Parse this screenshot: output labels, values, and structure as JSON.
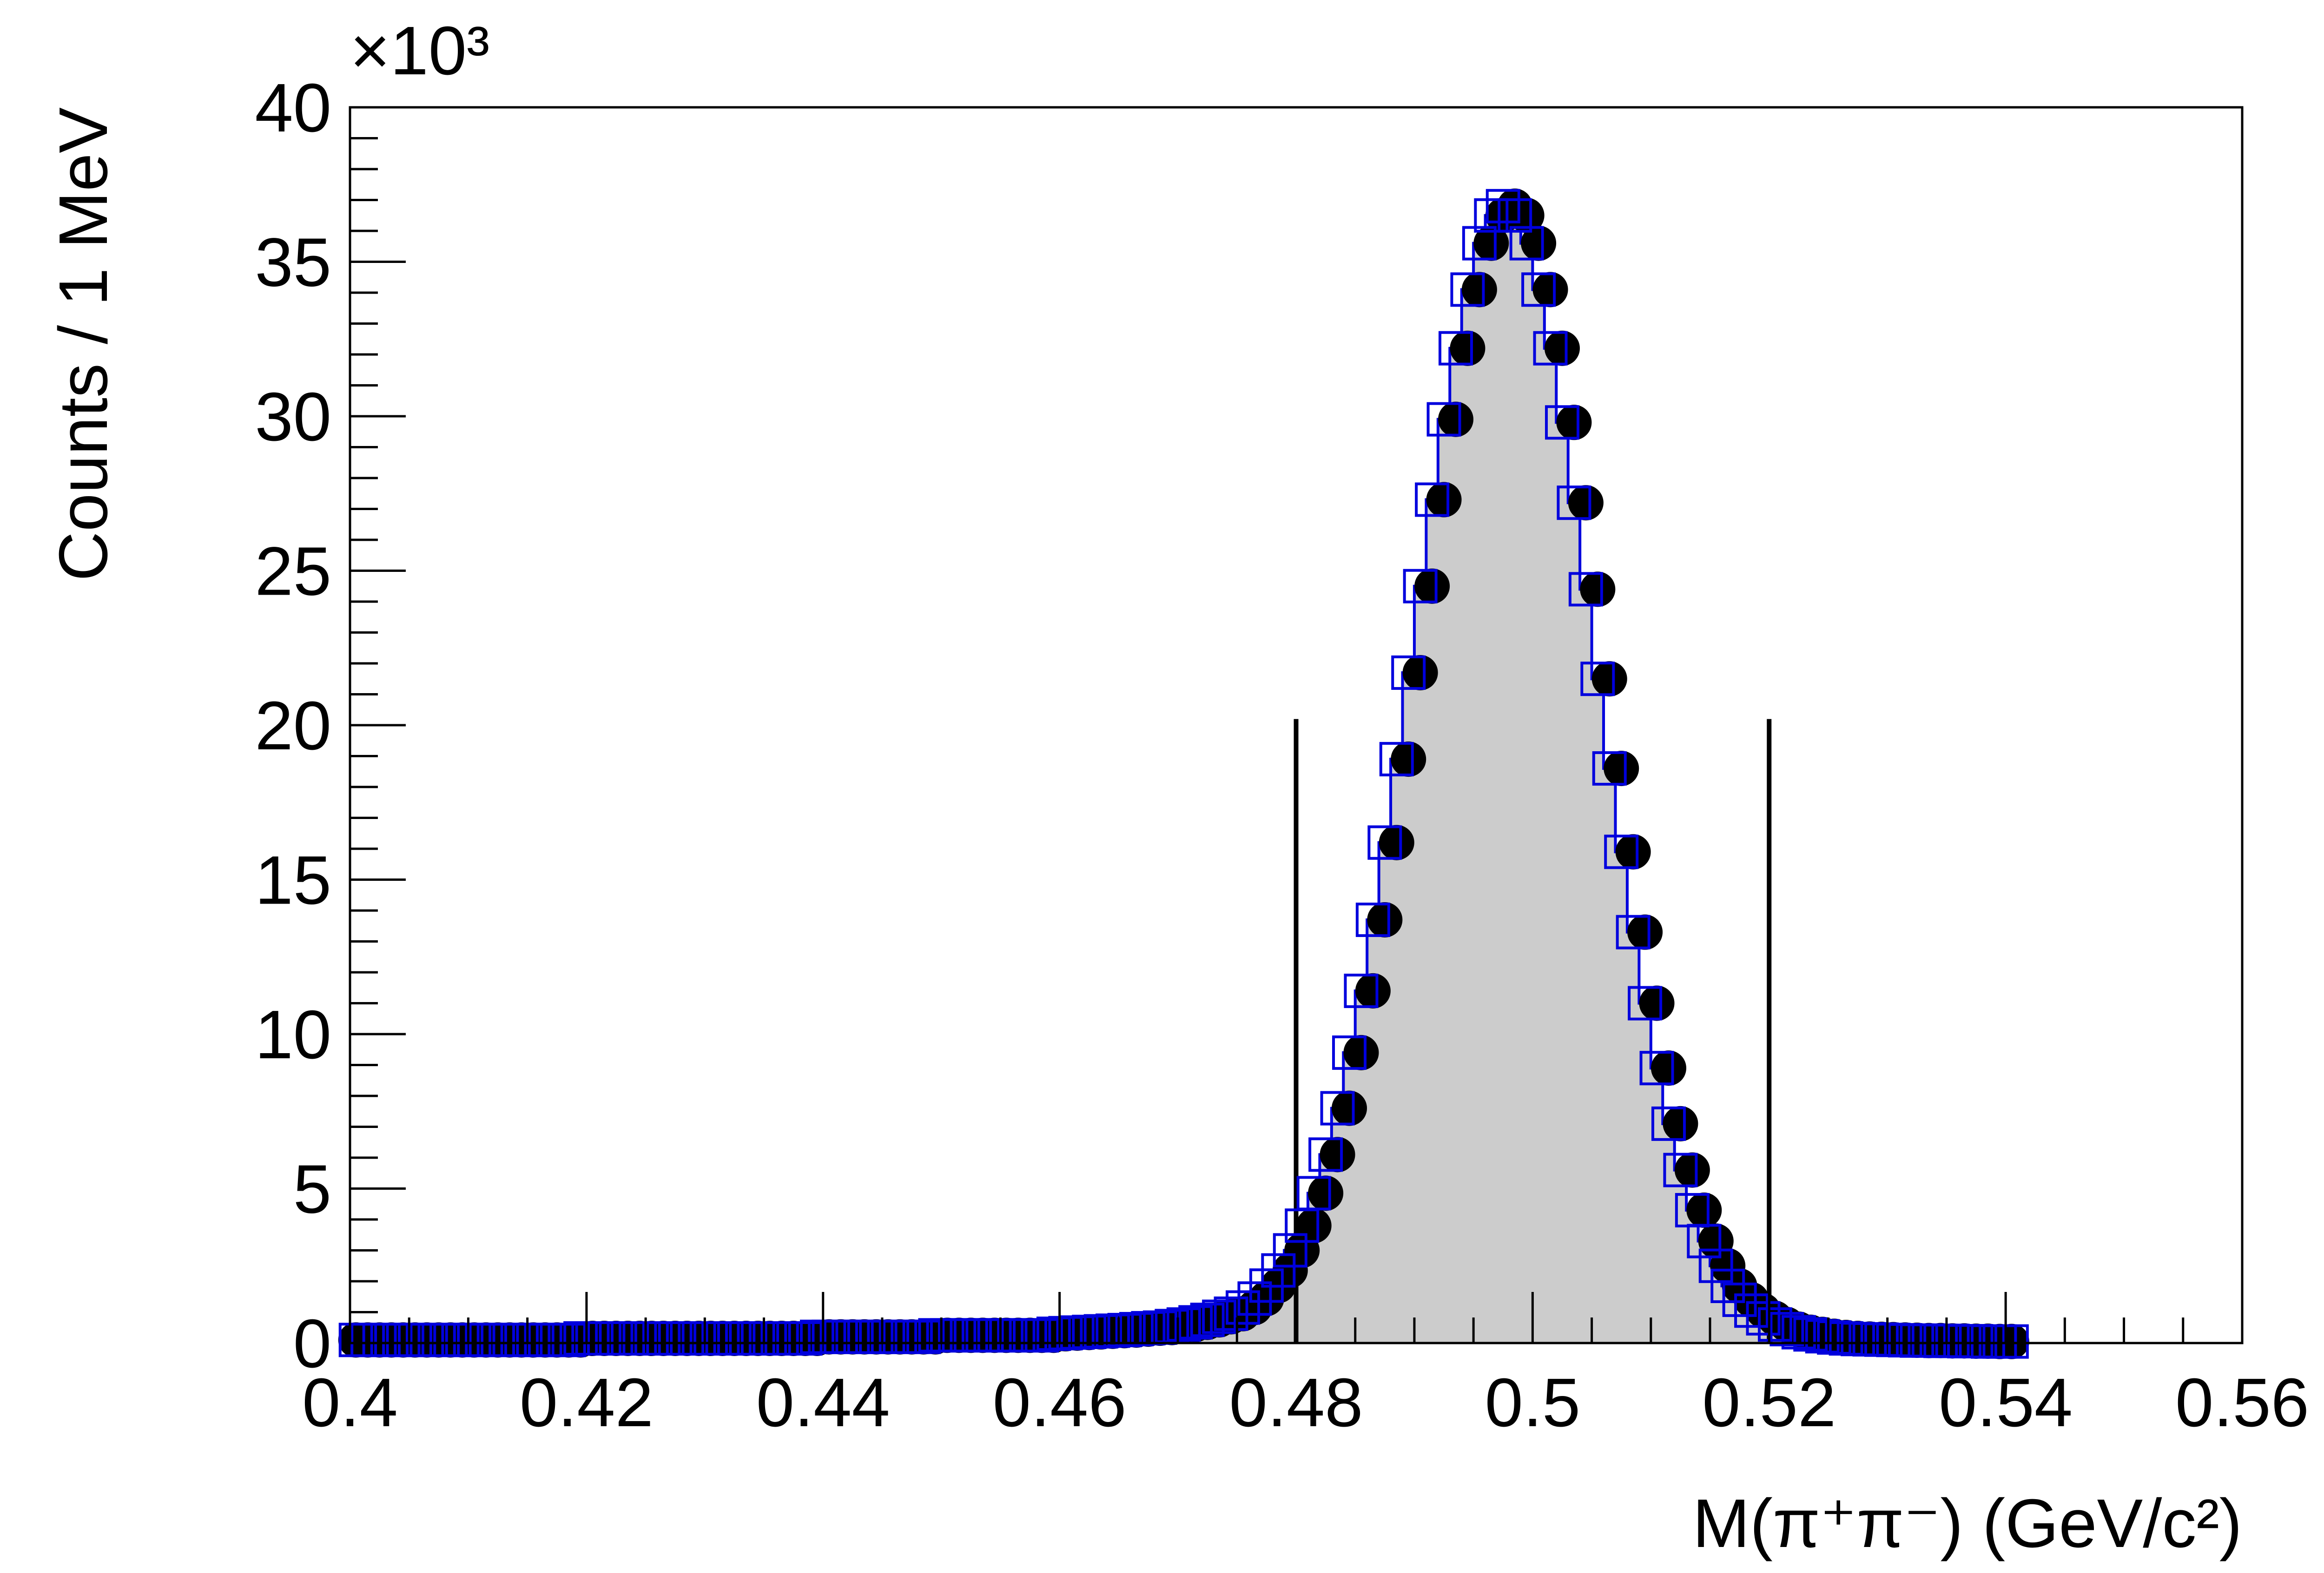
{
  "chart_data": {
    "type": "histogram",
    "y_multiplier": "×10³",
    "xlabel": "M(π⁺π⁻) (GeV/c²)",
    "ylabel": "Counts / 1 MeV",
    "xlim": [
      0.4,
      0.56
    ],
    "ylim": [
      0,
      40
    ],
    "xticks": [
      0.4,
      0.42,
      0.44,
      0.46,
      0.48,
      0.5,
      0.52,
      0.54,
      0.56
    ],
    "yticks": [
      0,
      5,
      10,
      15,
      20,
      25,
      30,
      35,
      40
    ],
    "fill_color": "#cccccc",
    "cuts": [
      0.48,
      0.52
    ],
    "cut_height": 20.2,
    "x": [
      0.4005,
      0.4015,
      0.4025,
      0.4035,
      0.4045,
      0.4055,
      0.4065,
      0.4075,
      0.4085,
      0.4095,
      0.4105,
      0.4115,
      0.4125,
      0.4135,
      0.4145,
      0.4155,
      0.4165,
      0.4175,
      0.4185,
      0.4195,
      0.4205,
      0.4215,
      0.4225,
      0.4235,
      0.4245,
      0.4255,
      0.4265,
      0.4275,
      0.4285,
      0.4295,
      0.4305,
      0.4315,
      0.4325,
      0.4335,
      0.4345,
      0.4355,
      0.4365,
      0.4375,
      0.4385,
      0.4395,
      0.4405,
      0.4415,
      0.4425,
      0.4435,
      0.4445,
      0.4455,
      0.4465,
      0.4475,
      0.4485,
      0.4495,
      0.4505,
      0.4515,
      0.4525,
      0.4535,
      0.4545,
      0.4555,
      0.4565,
      0.4575,
      0.4585,
      0.4595,
      0.4605,
      0.4615,
      0.4625,
      0.4635,
      0.4645,
      0.4655,
      0.4665,
      0.4675,
      0.4685,
      0.4695,
      0.4705,
      0.4715,
      0.4725,
      0.4735,
      0.4745,
      0.4755,
      0.4765,
      0.4775,
      0.4785,
      0.4795,
      0.4805,
      0.4815,
      0.4825,
      0.4835,
      0.4845,
      0.4855,
      0.4865,
      0.4875,
      0.4885,
      0.4895,
      0.4905,
      0.4915,
      0.4925,
      0.4935,
      0.4945,
      0.4955,
      0.4965,
      0.4975,
      0.4985,
      0.4995,
      0.5005,
      0.5015,
      0.5025,
      0.5035,
      0.5045,
      0.5055,
      0.5065,
      0.5075,
      0.5085,
      0.5095,
      0.5105,
      0.5115,
      0.5125,
      0.5135,
      0.5145,
      0.5155,
      0.5165,
      0.5175,
      0.5185,
      0.5195,
      0.5205,
      0.5215,
      0.5225,
      0.5235,
      0.5245,
      0.5255,
      0.5265,
      0.5275,
      0.5285,
      0.5295,
      0.5305,
      0.5315,
      0.5325,
      0.5335,
      0.5345,
      0.5355,
      0.5365,
      0.5375,
      0.5385,
      0.5395,
      0.5405
    ],
    "series": [
      {
        "color": "#000000",
        "values": [
          0.1,
          0.1,
          0.1,
          0.1,
          0.1,
          0.1,
          0.1,
          0.1,
          0.1,
          0.1,
          0.1,
          0.1,
          0.1,
          0.1,
          0.1,
          0.1,
          0.1,
          0.1,
          0.1,
          0.1,
          0.15,
          0.15,
          0.15,
          0.15,
          0.15,
          0.15,
          0.15,
          0.15,
          0.15,
          0.15,
          0.15,
          0.15,
          0.15,
          0.15,
          0.15,
          0.15,
          0.15,
          0.15,
          0.15,
          0.15,
          0.2,
          0.2,
          0.2,
          0.2,
          0.2,
          0.2,
          0.2,
          0.2,
          0.2,
          0.2,
          0.25,
          0.25,
          0.25,
          0.25,
          0.25,
          0.25,
          0.25,
          0.25,
          0.25,
          0.25,
          0.3,
          0.32,
          0.34,
          0.36,
          0.38,
          0.4,
          0.42,
          0.45,
          0.48,
          0.5,
          0.55,
          0.6,
          0.67,
          0.75,
          0.85,
          0.95,
          1.15,
          1.44,
          1.86,
          2.35,
          3.0,
          3.8,
          4.85,
          6.1,
          7.6,
          9.4,
          11.4,
          13.7,
          16.2,
          18.9,
          21.7,
          24.5,
          27.3,
          29.9,
          32.2,
          34.1,
          35.6,
          36.5,
          36.8,
          36.5,
          35.6,
          34.1,
          32.2,
          29.8,
          27.2,
          24.4,
          21.5,
          18.6,
          15.9,
          13.3,
          11.0,
          8.9,
          7.1,
          5.6,
          4.3,
          3.3,
          2.5,
          1.85,
          1.4,
          1.05,
          0.8,
          0.6,
          0.45,
          0.35,
          0.28,
          0.22,
          0.18,
          0.15,
          0.13,
          0.12,
          0.11,
          0.1,
          0.09,
          0.08,
          0.08,
          0.07,
          0.07,
          0.06,
          0.06,
          0.05,
          0.05
        ]
      },
      {
        "color": "#0000dd",
        "values": [
          0.1,
          0.1,
          0.1,
          0.1,
          0.1,
          0.1,
          0.1,
          0.1,
          0.1,
          0.1,
          0.1,
          0.1,
          0.1,
          0.1,
          0.1,
          0.1,
          0.1,
          0.1,
          0.1,
          0.15,
          0.15,
          0.15,
          0.15,
          0.15,
          0.15,
          0.15,
          0.15,
          0.15,
          0.15,
          0.15,
          0.15,
          0.15,
          0.15,
          0.15,
          0.15,
          0.15,
          0.15,
          0.15,
          0.15,
          0.2,
          0.2,
          0.2,
          0.2,
          0.2,
          0.2,
          0.2,
          0.2,
          0.2,
          0.2,
          0.25,
          0.25,
          0.25,
          0.25,
          0.25,
          0.25,
          0.25,
          0.25,
          0.25,
          0.25,
          0.3,
          0.32,
          0.34,
          0.36,
          0.38,
          0.4,
          0.42,
          0.45,
          0.48,
          0.5,
          0.55,
          0.6,
          0.67,
          0.75,
          0.85,
          0.95,
          1.15,
          1.44,
          1.86,
          2.35,
          3.0,
          3.8,
          4.85,
          6.1,
          7.6,
          9.4,
          11.4,
          13.7,
          16.2,
          18.9,
          21.7,
          24.5,
          27.3,
          29.9,
          32.2,
          34.1,
          35.6,
          36.5,
          36.8,
          36.5,
          35.6,
          34.1,
          32.2,
          29.8,
          27.2,
          24.4,
          21.5,
          18.6,
          15.9,
          13.3,
          11.0,
          8.9,
          7.1,
          5.6,
          4.3,
          3.3,
          2.5,
          1.85,
          1.4,
          1.05,
          0.8,
          0.6,
          0.45,
          0.35,
          0.28,
          0.22,
          0.18,
          0.15,
          0.13,
          0.12,
          0.11,
          0.1,
          0.09,
          0.08,
          0.08,
          0.07,
          0.07,
          0.06,
          0.06,
          0.05,
          0.05,
          0.05
        ]
      }
    ]
  }
}
